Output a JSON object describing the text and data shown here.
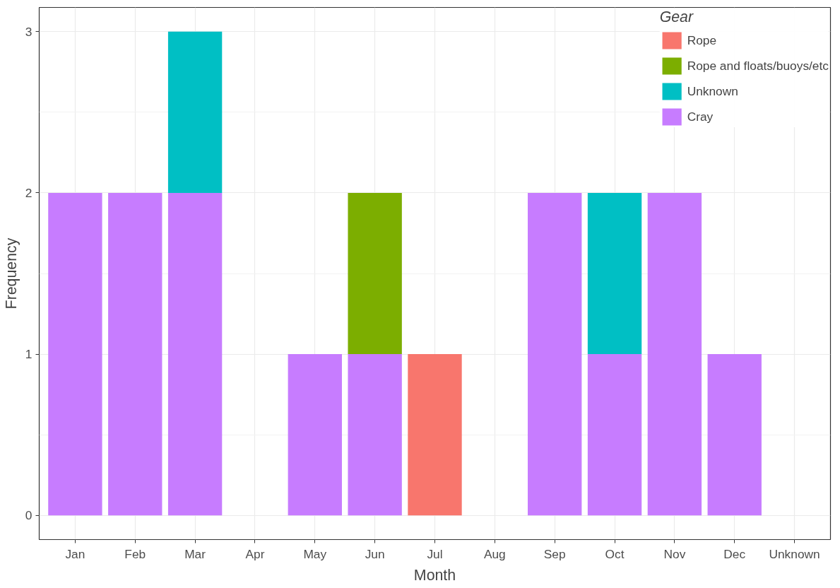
{
  "chart_data": {
    "type": "bar",
    "stacked": true,
    "xlabel": "Month",
    "ylabel": "Frequency",
    "legend_title": "Gear",
    "legend": "top right",
    "grid": true,
    "categories": [
      "Jan",
      "Feb",
      "Mar",
      "Apr",
      "May",
      "Jun",
      "Jul",
      "Aug",
      "Sep",
      "Oct",
      "Nov",
      "Dec",
      "Unknown"
    ],
    "ylim": [
      -0.15,
      3.15
    ],
    "yticks": [
      0,
      1,
      2,
      3
    ],
    "series": [
      {
        "name": "Cray",
        "color": "#c77cff",
        "values": [
          2,
          2,
          2,
          null,
          1,
          1,
          null,
          null,
          2,
          1,
          2,
          1,
          null
        ]
      },
      {
        "name": "Unknown",
        "color": "#00bfc4",
        "values": [
          null,
          null,
          1,
          null,
          null,
          null,
          null,
          null,
          null,
          1,
          null,
          null,
          null
        ]
      },
      {
        "name": "Rope and floats/buoys/etc",
        "color": "#7cae00",
        "values": [
          null,
          null,
          null,
          null,
          null,
          1,
          null,
          null,
          null,
          null,
          null,
          null,
          null
        ]
      },
      {
        "name": "Rope",
        "color": "#f8766d",
        "values": [
          null,
          null,
          null,
          null,
          null,
          null,
          1,
          null,
          null,
          null,
          null,
          null,
          null
        ]
      }
    ]
  }
}
